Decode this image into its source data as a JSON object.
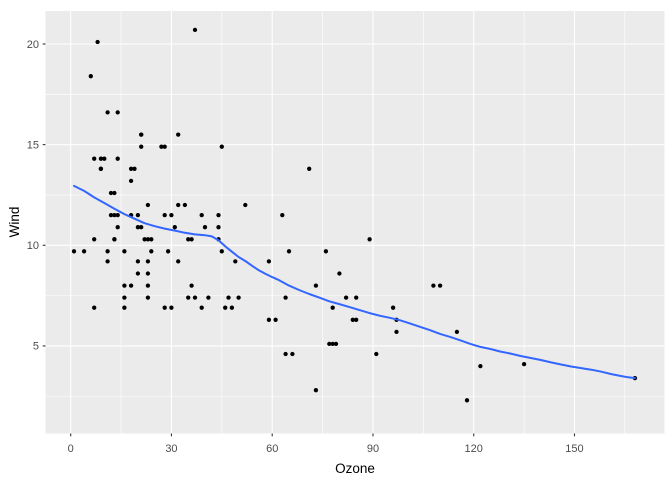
{
  "chart_data": {
    "type": "scatter",
    "title": "",
    "xlabel": "Ozone",
    "ylabel": "Wind",
    "legend": null,
    "grid": "on",
    "panel_bg": "#EBEBEB",
    "grid_color": "#FFFFFF",
    "point_color": "#000000",
    "smooth_color": "#3366FF",
    "tick_label_color": "#4d4d4d",
    "tick_mark_color": "#333333",
    "axis_title_color": "#000000",
    "xlim": [
      -7.5,
      176.8
    ],
    "ylim": [
      0.65,
      21.64
    ],
    "x_ticks": [
      0,
      30,
      60,
      90,
      120,
      150
    ],
    "x_minor_ticks": [
      15,
      45,
      75,
      105,
      135,
      165
    ],
    "y_ticks": [
      5,
      10,
      15,
      20
    ],
    "y_minor_ticks": [
      2.5,
      7.5,
      12.5,
      17.5
    ],
    "points": [
      [
        41,
        7.4
      ],
      [
        36,
        8
      ],
      [
        12,
        12.6
      ],
      [
        18,
        11.5
      ],
      [
        28,
        14.9
      ],
      [
        23,
        8.6
      ],
      [
        19,
        13.8
      ],
      [
        8,
        20.1
      ],
      [
        7,
        6.9
      ],
      [
        16,
        9.7
      ],
      [
        11,
        9.2
      ],
      [
        14,
        10.9
      ],
      [
        18,
        13.2
      ],
      [
        14,
        11.5
      ],
      [
        34,
        12
      ],
      [
        6,
        18.4
      ],
      [
        30,
        11.5
      ],
      [
        11,
        9.7
      ],
      [
        1,
        9.7
      ],
      [
        11,
        16.6
      ],
      [
        4,
        9.7
      ],
      [
        32,
        12
      ],
      [
        23,
        12
      ],
      [
        45,
        14.9
      ],
      [
        115,
        5.7
      ],
      [
        37,
        7.4
      ],
      [
        29,
        9.7
      ],
      [
        71,
        13.8
      ],
      [
        39,
        11.5
      ],
      [
        23,
        8
      ],
      [
        21,
        14.9
      ],
      [
        37,
        20.7
      ],
      [
        20,
        9.2
      ],
      [
        12,
        11.5
      ],
      [
        13,
        10.3
      ],
      [
        135,
        4.1
      ],
      [
        49,
        9.2
      ],
      [
        32,
        9.2
      ],
      [
        64,
        4.6
      ],
      [
        40,
        10.9
      ],
      [
        77,
        5.1
      ],
      [
        97,
        6.3
      ],
      [
        97,
        5.7
      ],
      [
        85,
        7.4
      ],
      [
        10,
        14.3
      ],
      [
        27,
        14.9
      ],
      [
        7,
        14.3
      ],
      [
        48,
        6.9
      ],
      [
        35,
        10.3
      ],
      [
        61,
        6.3
      ],
      [
        79,
        5.1
      ],
      [
        63,
        11.5
      ],
      [
        16,
        6.9
      ],
      [
        80,
        8.6
      ],
      [
        108,
        8
      ],
      [
        20,
        8.6
      ],
      [
        52,
        12
      ],
      [
        82,
        7.4
      ],
      [
        50,
        7.4
      ],
      [
        64,
        7.4
      ],
      [
        59,
        9.2
      ],
      [
        39,
        6.9
      ],
      [
        9,
        13.8
      ],
      [
        16,
        7.4
      ],
      [
        78,
        6.9
      ],
      [
        35,
        7.4
      ],
      [
        66,
        4.6
      ],
      [
        122,
        4
      ],
      [
        89,
        10.3
      ],
      [
        110,
        8
      ],
      [
        44,
        11.5
      ],
      [
        28,
        11.5
      ],
      [
        65,
        9.7
      ],
      [
        22,
        10.3
      ],
      [
        59,
        6.3
      ],
      [
        23,
        7.4
      ],
      [
        31,
        10.9
      ],
      [
        44,
        10.3
      ],
      [
        21,
        15.5
      ],
      [
        9,
        14.3
      ],
      [
        45,
        9.7
      ],
      [
        168,
        3.4
      ],
      [
        73,
        8
      ],
      [
        76,
        9.7
      ],
      [
        118,
        2.3
      ],
      [
        84,
        6.3
      ],
      [
        85,
        6.3
      ],
      [
        96,
        6.9
      ],
      [
        78,
        5.1
      ],
      [
        73,
        2.8
      ],
      [
        91,
        4.6
      ],
      [
        47,
        7.4
      ],
      [
        32,
        15.5
      ],
      [
        20,
        10.9
      ],
      [
        23,
        10.3
      ],
      [
        21,
        10.9
      ],
      [
        24,
        9.7
      ],
      [
        44,
        10.9
      ],
      [
        21,
        15.5
      ],
      [
        28,
        6.9
      ],
      [
        9,
        13.8
      ],
      [
        13,
        11.5
      ],
      [
        46,
        6.9
      ],
      [
        18,
        13.8
      ],
      [
        13,
        10.3
      ],
      [
        24,
        10.3
      ],
      [
        16,
        8
      ],
      [
        13,
        12.6
      ],
      [
        23,
        9.2
      ],
      [
        36,
        10.3
      ],
      [
        7,
        10.3
      ],
      [
        14,
        16.6
      ],
      [
        30,
        6.9
      ],
      [
        14,
        14.3
      ],
      [
        18,
        8
      ],
      [
        20,
        11.5
      ]
    ],
    "smooth_line": {
      "name": "loess-smooth",
      "points": [
        [
          1,
          12.95
        ],
        [
          4,
          12.7
        ],
        [
          7,
          12.38
        ],
        [
          10,
          12.1
        ],
        [
          13,
          11.82
        ],
        [
          16,
          11.55
        ],
        [
          19,
          11.32
        ],
        [
          22,
          11.1
        ],
        [
          25,
          10.95
        ],
        [
          28,
          10.83
        ],
        [
          31,
          10.73
        ],
        [
          34,
          10.62
        ],
        [
          37,
          10.54
        ],
        [
          40,
          10.5
        ],
        [
          42,
          10.44
        ],
        [
          44,
          10.25
        ],
        [
          46,
          9.95
        ],
        [
          48,
          9.68
        ],
        [
          50,
          9.42
        ],
        [
          52,
          9.22
        ],
        [
          54,
          8.98
        ],
        [
          56,
          8.76
        ],
        [
          58,
          8.58
        ],
        [
          60,
          8.42
        ],
        [
          62,
          8.27
        ],
        [
          65,
          8.0
        ],
        [
          68,
          7.78
        ],
        [
          71,
          7.58
        ],
        [
          74,
          7.4
        ],
        [
          77,
          7.22
        ],
        [
          80,
          7.08
        ],
        [
          83,
          6.93
        ],
        [
          86,
          6.78
        ],
        [
          89,
          6.63
        ],
        [
          92,
          6.5
        ],
        [
          95,
          6.4
        ],
        [
          98,
          6.28
        ],
        [
          101,
          6.12
        ],
        [
          104,
          5.95
        ],
        [
          107,
          5.78
        ],
        [
          110,
          5.6
        ],
        [
          113,
          5.45
        ],
        [
          116,
          5.28
        ],
        [
          119,
          5.1
        ],
        [
          122,
          4.95
        ],
        [
          125,
          4.85
        ],
        [
          128,
          4.72
        ],
        [
          131,
          4.62
        ],
        [
          134,
          4.5
        ],
        [
          137,
          4.4
        ],
        [
          140,
          4.3
        ],
        [
          143,
          4.18
        ],
        [
          146,
          4.08
        ],
        [
          149,
          3.98
        ],
        [
          152,
          3.9
        ],
        [
          155,
          3.82
        ],
        [
          158,
          3.72
        ],
        [
          161,
          3.6
        ],
        [
          164,
          3.5
        ],
        [
          166,
          3.44
        ],
        [
          168,
          3.4
        ]
      ]
    }
  }
}
